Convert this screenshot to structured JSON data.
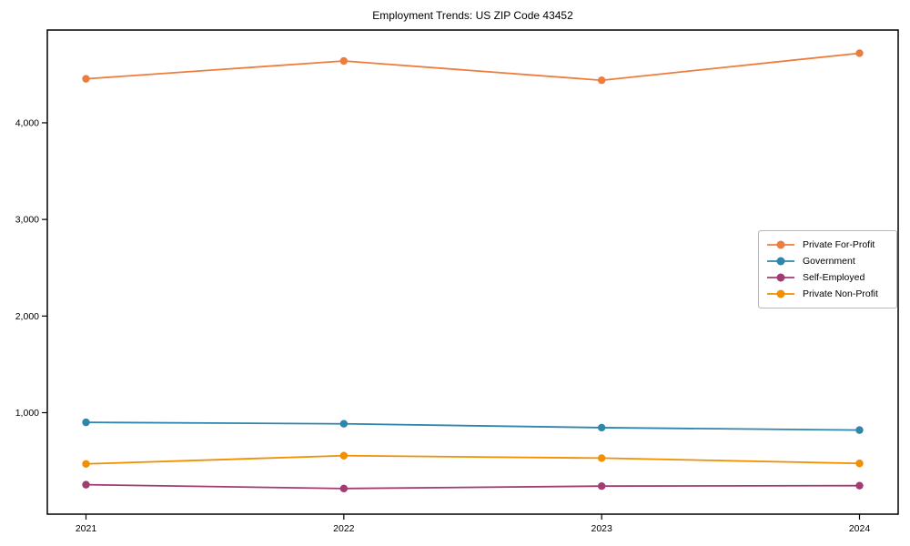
{
  "title": "Employment Trends: US ZIP Code 43452",
  "chart_data": {
    "type": "line",
    "title": "Employment Trends: US ZIP Code 43452",
    "xlabel": "",
    "ylabel": "",
    "categories": [
      "2021",
      "2022",
      "2023",
      "2024"
    ],
    "x": [
      2021,
      2022,
      2023,
      2024
    ],
    "series": [
      {
        "name": "Private For-Profit",
        "color": "#ED7D3E",
        "values": [
          4455,
          4640,
          4440,
          4720
        ]
      },
      {
        "name": "Government",
        "color": "#2E86AB",
        "values": [
          900,
          885,
          845,
          820
        ]
      },
      {
        "name": "Self-Employed",
        "color": "#A23B72",
        "values": [
          255,
          215,
          240,
          245
        ]
      },
      {
        "name": "Private Non-Profit",
        "color": "#F18F01",
        "values": [
          470,
          555,
          530,
          475
        ]
      }
    ],
    "yticks": [
      1000,
      2000,
      3000,
      4000
    ],
    "ytick_labels": [
      "1,000",
      "2,000",
      "3,000",
      "4,000"
    ],
    "ylim": [
      -50,
      4960
    ],
    "grid": false,
    "legend_position": "center-right",
    "frame": "full-box",
    "axis_color": "#000000"
  }
}
